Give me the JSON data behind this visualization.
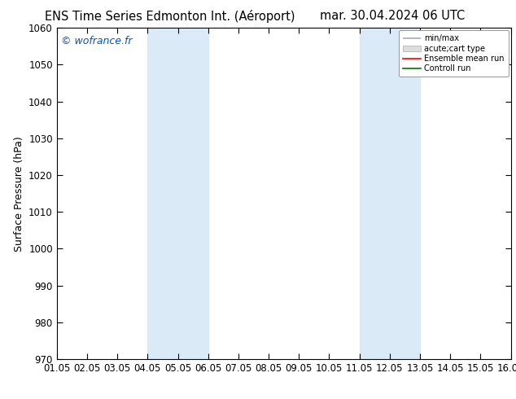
{
  "title_left": "ENS Time Series Edmonton Int. (Aéroport)",
  "title_right": "mar. 30.04.2024 06 UTC",
  "ylabel": "Surface Pressure (hPa)",
  "ylim": [
    970,
    1060
  ],
  "yticks": [
    970,
    980,
    990,
    1000,
    1010,
    1020,
    1030,
    1040,
    1050,
    1060
  ],
  "xtick_labels": [
    "01.05",
    "02.05",
    "03.05",
    "04.05",
    "05.05",
    "06.05",
    "07.05",
    "08.05",
    "09.05",
    "10.05",
    "11.05",
    "12.05",
    "13.05",
    "14.05",
    "15.05",
    "16.05"
  ],
  "watermark": "© wofrance.fr",
  "shaded_bands": [
    {
      "xstart": 3,
      "xend": 5
    },
    {
      "xstart": 10,
      "xend": 12
    }
  ],
  "shade_color": "#daeaf6",
  "background_color": "#ffffff",
  "legend_entries": [
    {
      "label": "min/max"
    },
    {
      "label": "acute;cart type"
    },
    {
      "label": "Ensemble mean run",
      "color": "#ff0000"
    },
    {
      "label": "Controll run",
      "color": "#007700"
    }
  ],
  "title_fontsize": 10.5,
  "ylabel_fontsize": 9,
  "tick_fontsize": 8.5,
  "watermark_color": "#0055cc",
  "watermark_fontsize": 9
}
